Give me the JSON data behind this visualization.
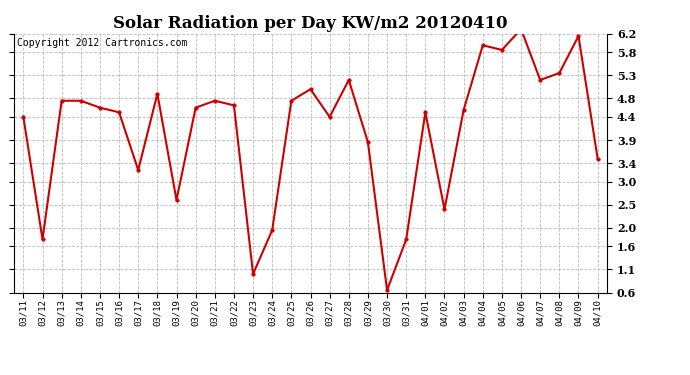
{
  "title": "Solar Radiation per Day KW/m2 20120410",
  "copyright": "Copyright 2012 Cartronics.com",
  "dates": [
    "03/11",
    "03/12",
    "03/13",
    "03/14",
    "03/15",
    "03/16",
    "03/17",
    "03/18",
    "03/19",
    "03/20",
    "03/21",
    "03/22",
    "03/23",
    "03/24",
    "03/25",
    "03/26",
    "03/27",
    "03/28",
    "03/29",
    "03/30",
    "03/31",
    "04/01",
    "04/02",
    "04/03",
    "04/04",
    "04/05",
    "04/06",
    "04/07",
    "04/08",
    "04/09",
    "04/10"
  ],
  "values": [
    4.4,
    1.75,
    4.75,
    4.75,
    4.6,
    4.5,
    3.25,
    4.9,
    2.6,
    4.6,
    4.75,
    4.65,
    1.0,
    1.95,
    4.75,
    5.0,
    4.4,
    5.2,
    3.85,
    0.65,
    1.75,
    4.5,
    2.4,
    4.55,
    5.95,
    5.85,
    6.3,
    5.2,
    5.35,
    6.15,
    3.5
  ],
  "line_color": "#cc0000",
  "marker": "o",
  "marker_size": 2.5,
  "line_width": 1.5,
  "ylim": [
    0.6,
    6.2
  ],
  "yticks": [
    0.6,
    1.1,
    1.6,
    2.0,
    2.5,
    3.0,
    3.4,
    3.9,
    4.4,
    4.8,
    5.3,
    5.8,
    6.2
  ],
  "background_color": "#ffffff",
  "grid_color": "#bbbbbb",
  "title_fontsize": 12,
  "copyright_fontsize": 7,
  "xtick_fontsize": 6.5,
  "ytick_fontsize": 8
}
